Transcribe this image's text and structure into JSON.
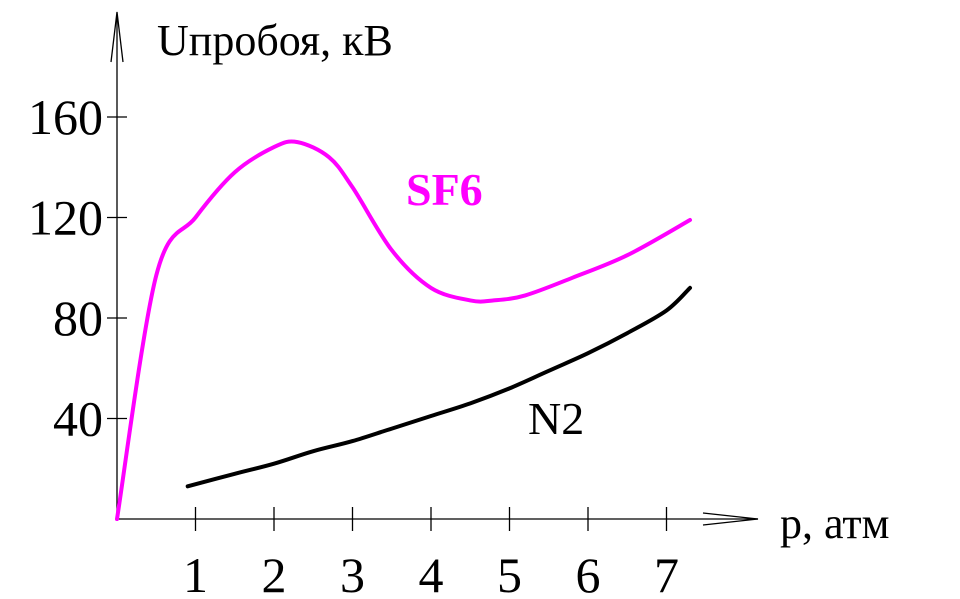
{
  "chart_data": {
    "type": "line",
    "xlabel": "p, атм",
    "ylabel": "Uпробоя, кВ",
    "xlim": [
      0,
      8
    ],
    "ylim": [
      0,
      160
    ],
    "xticks": [
      1,
      2,
      3,
      4,
      5,
      6,
      7
    ],
    "yticks": [
      40,
      80,
      120,
      160
    ],
    "grid": false,
    "series": [
      {
        "name": "SF6",
        "color": "#ff00ff",
        "x": [
          0,
          0.5,
          1.0,
          1.5,
          2.0,
          2.3,
          2.7,
          3.0,
          3.5,
          4.0,
          4.5,
          4.8,
          5.2,
          5.8,
          6.5,
          7.3
        ],
        "y": [
          0,
          97,
          120,
          138,
          148,
          150,
          144,
          132,
          107,
          92,
          87,
          87,
          89,
          96,
          105,
          119
        ]
      },
      {
        "name": "N2",
        "color": "#000000",
        "x": [
          0.9,
          1.5,
          2.0,
          2.5,
          3.0,
          3.5,
          4.0,
          4.5,
          5.0,
          5.5,
          6.0,
          6.5,
          7.0,
          7.3
        ],
        "y": [
          13,
          18,
          22,
          27,
          31,
          36,
          41,
          46,
          52,
          59,
          66,
          74,
          83,
          92
        ]
      }
    ]
  }
}
